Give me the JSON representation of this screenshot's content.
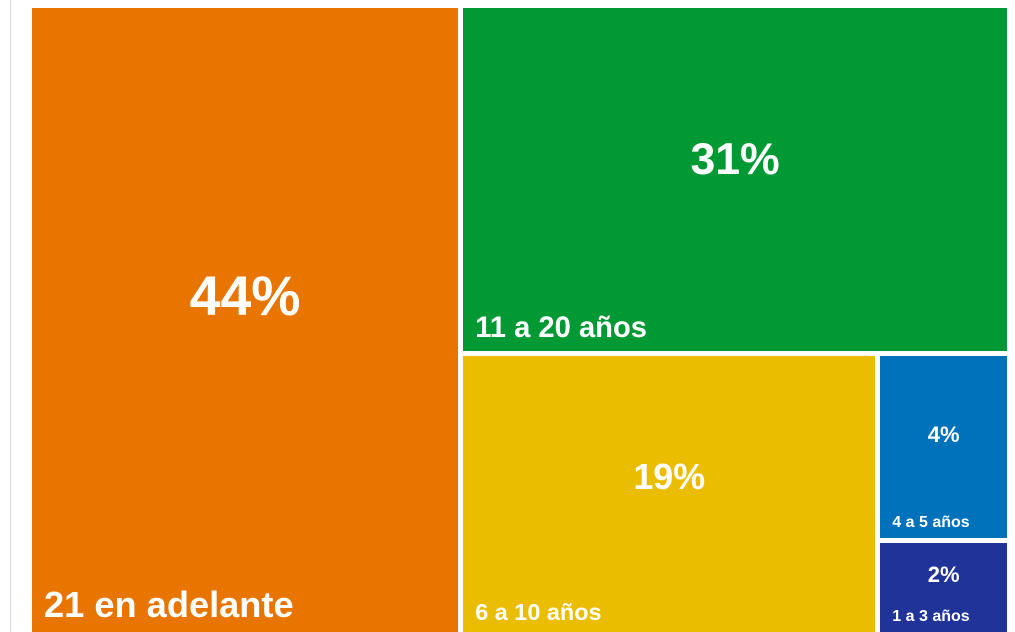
{
  "chart_data": {
    "type": "treemap",
    "categories": [
      "21 en adelante",
      "11 a 20 años",
      "6 a 10 años",
      "4 a 5 años",
      "1 a 3 años"
    ],
    "values": [
      44,
      31,
      19,
      4,
      2
    ],
    "value_labels": [
      "44%",
      "31%",
      "19%",
      "4%",
      "2%"
    ],
    "colors": [
      "#e87500",
      "#009933",
      "#ebbd00",
      "#0072bc",
      "#1f3399"
    ]
  }
}
